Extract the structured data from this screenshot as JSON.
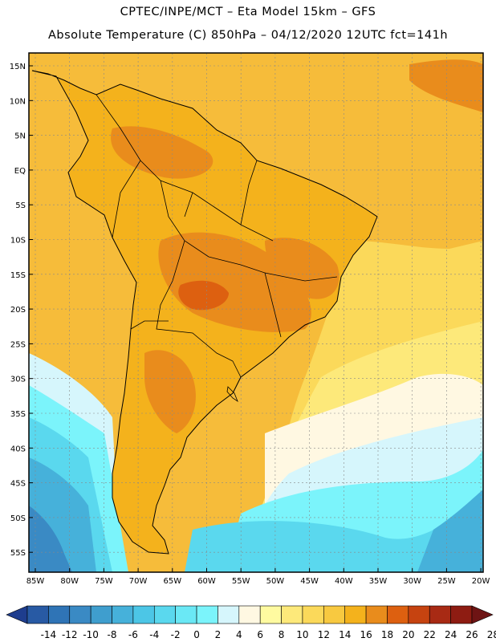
{
  "header": {
    "line1": "CPTEC/INPE/MCT –  Eta Model 15km – GFS",
    "line2": "Absolute Temperature (C) 850hPa – 04/12/2020 12UTC fct=141h"
  },
  "axes": {
    "lat_ticks": [
      "15N",
      "10N",
      "5N",
      "EQ",
      "5S",
      "10S",
      "15S",
      "20S",
      "25S",
      "30S",
      "35S",
      "40S",
      "45S",
      "50S",
      "55S"
    ],
    "lon_ticks": [
      "85W",
      "80W",
      "75W",
      "70W",
      "65W",
      "60W",
      "55W",
      "50W",
      "45W",
      "40W",
      "35W",
      "30W",
      "25W",
      "20W"
    ]
  },
  "colorbar": {
    "labels": [
      "-14",
      "-12",
      "-10",
      "-8",
      "-6",
      "-4",
      "-2",
      "0",
      "2",
      "4",
      "6",
      "8",
      "10",
      "12",
      "14",
      "16",
      "18",
      "20",
      "22",
      "24",
      "26",
      "28"
    ],
    "colors": [
      "#1e3d8e",
      "#285aa4",
      "#2f74b6",
      "#3a8ac4",
      "#3f9ece",
      "#46b1da",
      "#4cc6e6",
      "#5ad8ee",
      "#6ae8f5",
      "#7bf4fb",
      "#d6f6fc",
      "#fff8e2",
      "#fffaa0",
      "#fde97a",
      "#fbd95a",
      "#f8c940",
      "#f4b21c",
      "#e98c1c",
      "#dd6010",
      "#c64310",
      "#a82a14",
      "#8e1c12",
      "#6e1414"
    ]
  },
  "map": {
    "colors": {
      "ocean_north": "#f6bc3a",
      "ocean_mid": "#fbd95a",
      "ocean_pale": "#fde97a",
      "cream": "#fff8e2",
      "ice": "#d6f6fc",
      "cyan": "#7bf4fb",
      "cyan2": "#5ad8ee",
      "blue1": "#46b1da",
      "blue2": "#3a8ac4",
      "land_orange": "#f4b21c",
      "warm": "#e98c1c",
      "hot": "#dd6010",
      "coast": "#000000",
      "grid": "#888888"
    }
  }
}
